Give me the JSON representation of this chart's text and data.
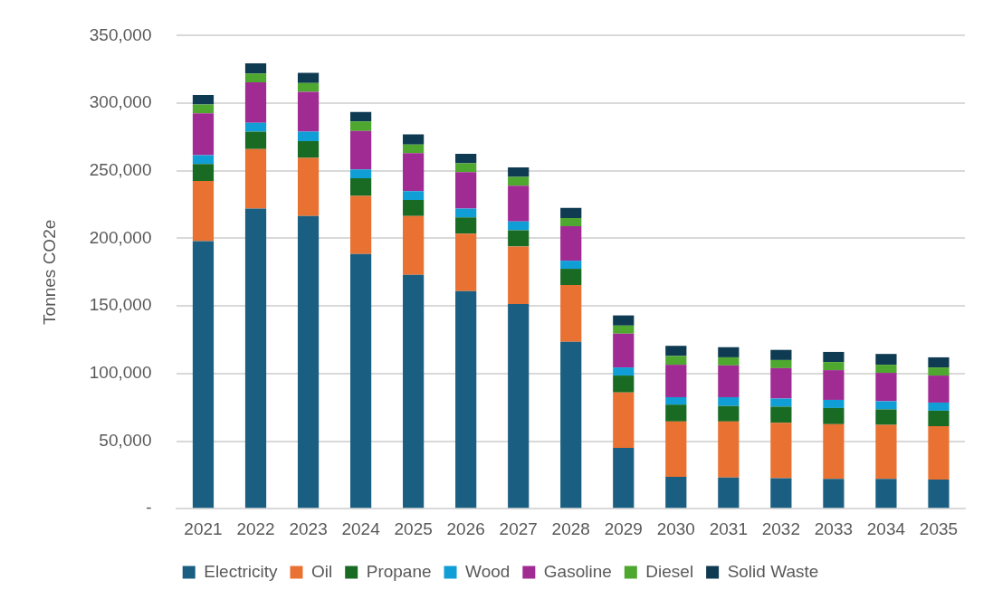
{
  "chart_data": {
    "type": "bar",
    "stacked": true,
    "ylabel": "Tonnes CO2e",
    "grid": "y",
    "legend": "bottom",
    "categories": [
      "2021",
      "2022",
      "2023",
      "2024",
      "2025",
      "2026",
      "2027",
      "2028",
      "2029",
      "2030",
      "2031",
      "2032",
      "2033",
      "2034",
      "2035"
    ],
    "ylim": [
      0,
      350000
    ],
    "yticks": [
      {
        "value": 0,
        "label": "-"
      },
      {
        "value": 50000,
        "label": "50,000"
      },
      {
        "value": 100000,
        "label": "100,000"
      },
      {
        "value": 150000,
        "label": "150,000"
      },
      {
        "value": 200000,
        "label": "200,000"
      },
      {
        "value": 250000,
        "label": "250,000"
      },
      {
        "value": 300000,
        "label": "300,000"
      },
      {
        "value": 350000,
        "label": "350,000"
      }
    ],
    "series": [
      {
        "name": "Electricity",
        "color": "#1a5f82",
        "values": [
          198000,
          222000,
          216500,
          188500,
          173000,
          161000,
          151500,
          123500,
          45000,
          23500,
          23000,
          22500,
          22000,
          22000,
          21500
        ]
      },
      {
        "name": "Oil",
        "color": "#e97132",
        "values": [
          44500,
          44000,
          43000,
          43000,
          43500,
          42500,
          42500,
          42000,
          41000,
          41000,
          41500,
          41000,
          40500,
          40000,
          39500
        ]
      },
      {
        "name": "Propane",
        "color": "#196b24",
        "values": [
          12500,
          13000,
          12500,
          13000,
          12000,
          12000,
          12000,
          12000,
          12500,
          12500,
          11500,
          12000,
          12000,
          11500,
          11500
        ]
      },
      {
        "name": "Wood",
        "color": "#0f9ed5",
        "values": [
          6500,
          6500,
          7000,
          6500,
          6500,
          6500,
          6500,
          6000,
          6000,
          5500,
          6500,
          6000,
          6000,
          6000,
          6000
        ]
      },
      {
        "name": "Gasoline",
        "color": "#a02b93",
        "values": [
          31000,
          30000,
          29500,
          28500,
          28000,
          27000,
          26500,
          25500,
          25000,
          24000,
          23500,
          22500,
          22000,
          21000,
          20000
        ]
      },
      {
        "name": "Diesel",
        "color": "#4ea72e",
        "values": [
          6500,
          6500,
          6500,
          7000,
          6500,
          6500,
          6500,
          6000,
          6000,
          6500,
          6000,
          6000,
          6000,
          6000,
          6000
        ]
      },
      {
        "name": "Solid Waste",
        "color": "#0e3a52",
        "values": [
          7000,
          7500,
          7500,
          7000,
          7500,
          7000,
          7000,
          7500,
          7500,
          7500,
          7500,
          7500,
          7500,
          8000,
          7500
        ]
      }
    ]
  }
}
